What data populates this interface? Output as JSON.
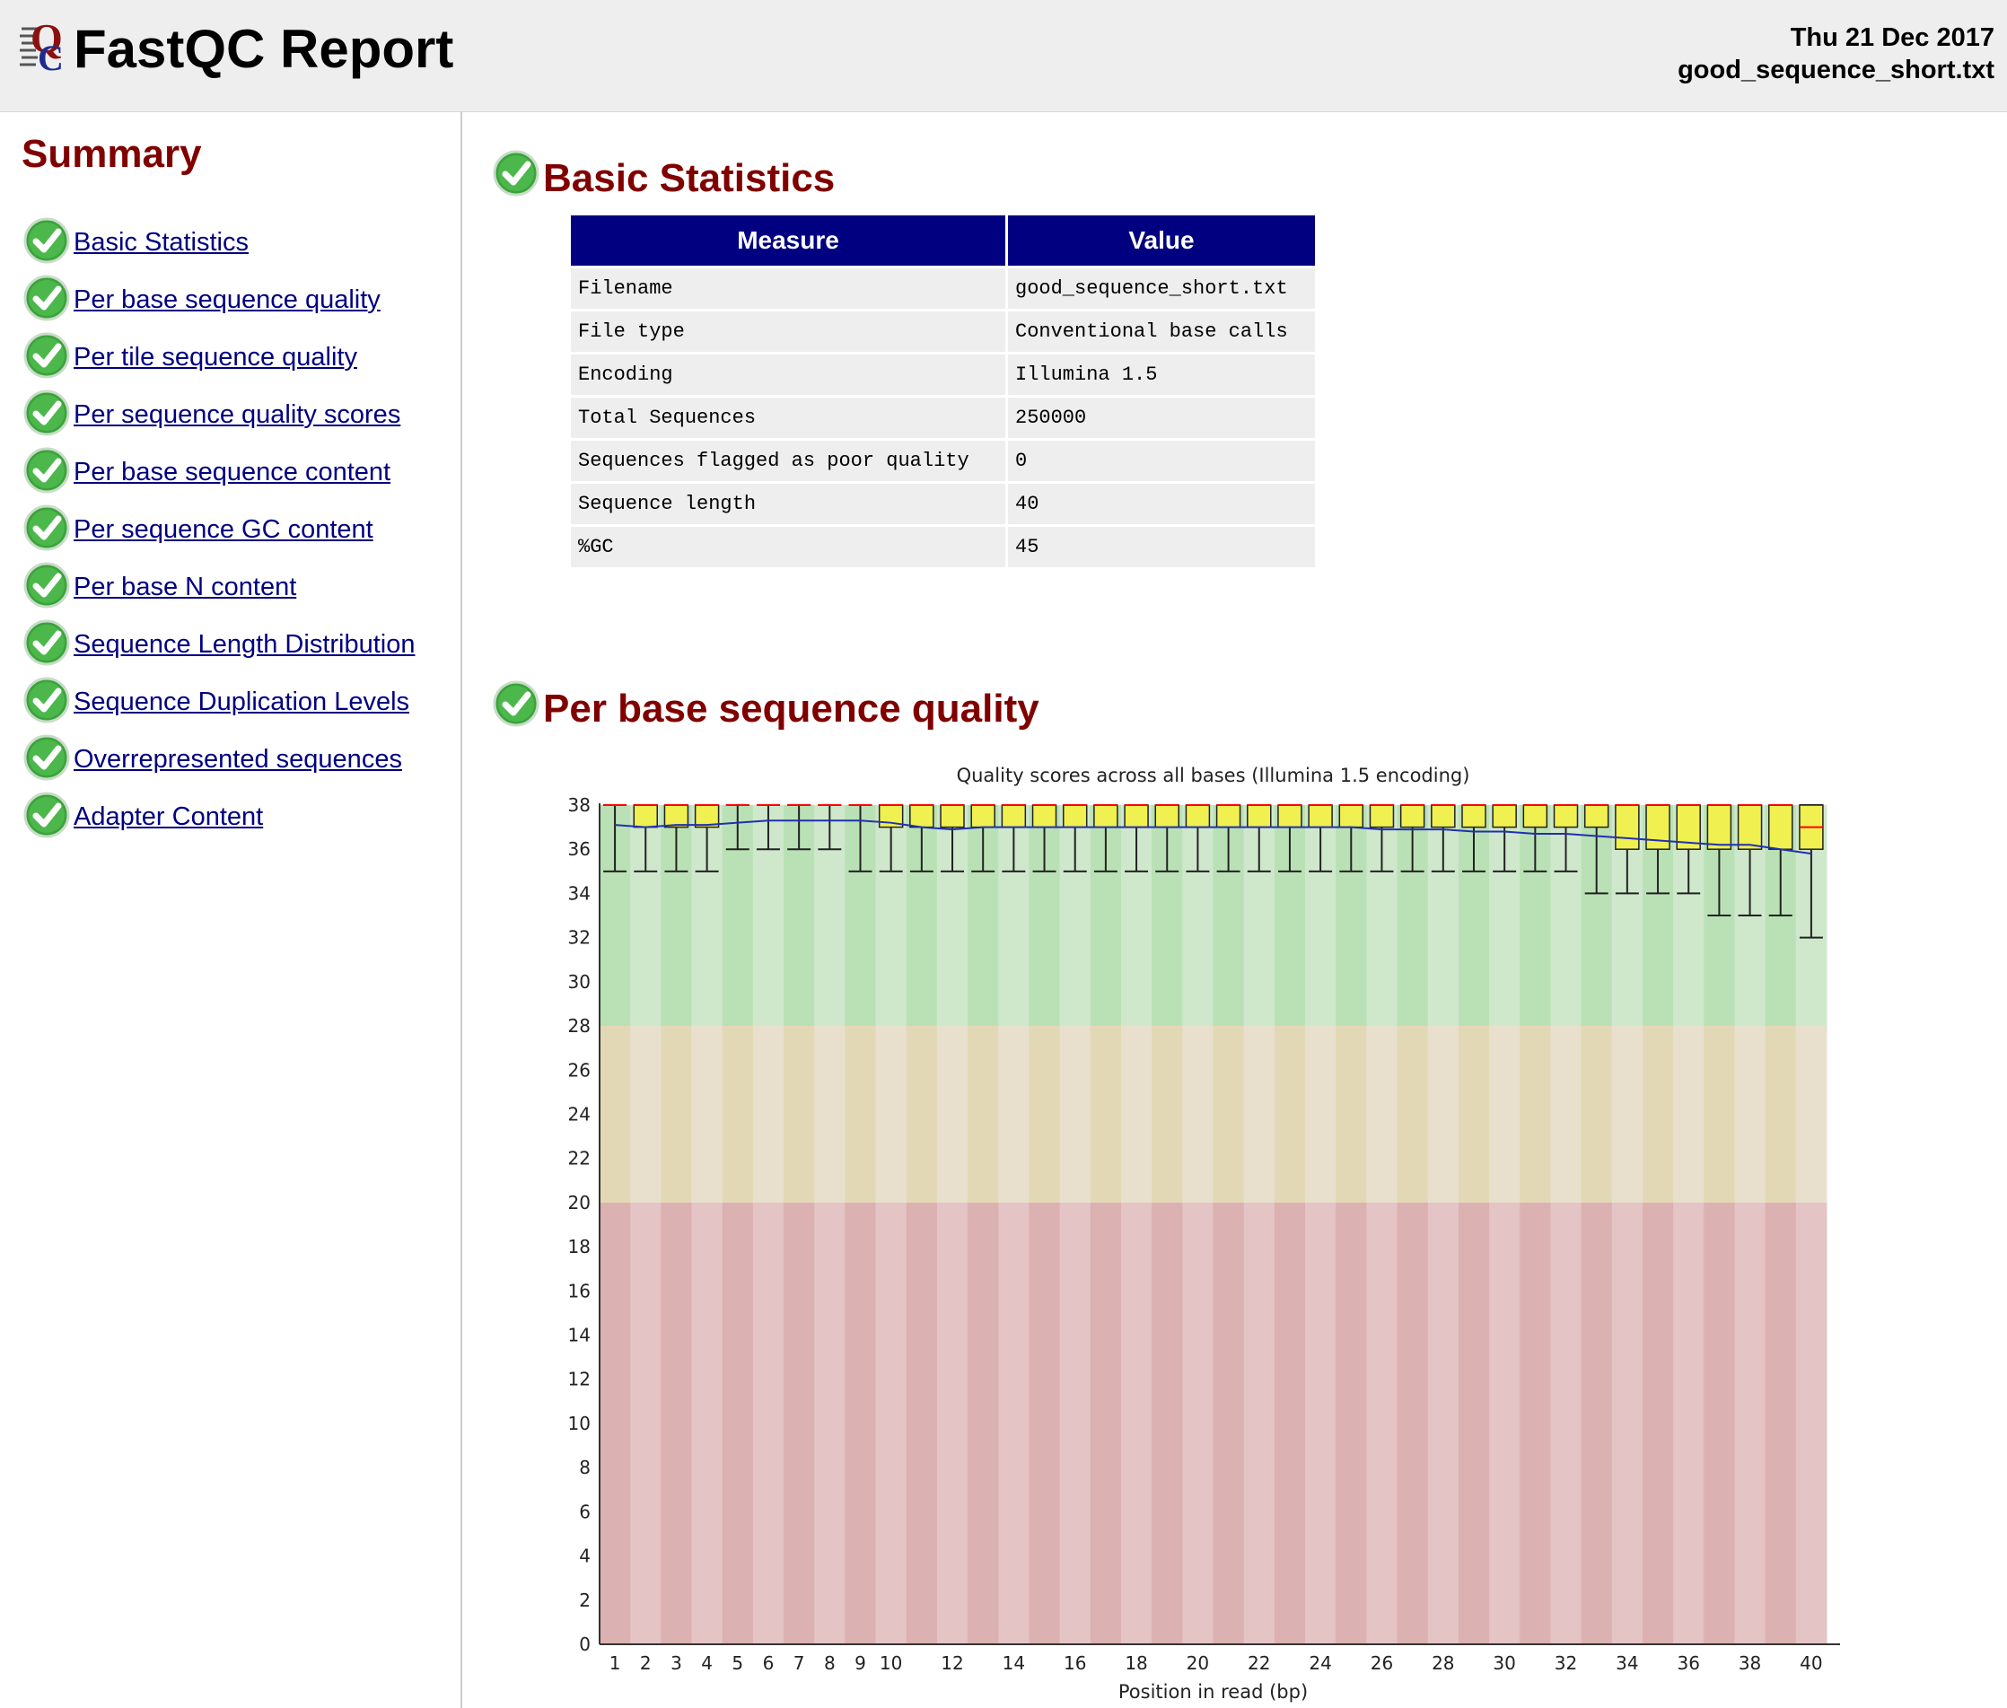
{
  "header": {
    "title": "FastQC Report",
    "date": "Thu 21 Dec 2017",
    "filename": "good_sequence_short.txt"
  },
  "sidebar": {
    "title": "Summary",
    "items": [
      {
        "label": "Basic Statistics",
        "status": "pass"
      },
      {
        "label": "Per base sequence quality",
        "status": "pass"
      },
      {
        "label": "Per tile sequence quality",
        "status": "pass"
      },
      {
        "label": "Per sequence quality scores",
        "status": "pass"
      },
      {
        "label": "Per base sequence content",
        "status": "pass"
      },
      {
        "label": "Per sequence GC content",
        "status": "pass"
      },
      {
        "label": "Per base N content",
        "status": "pass"
      },
      {
        "label": "Sequence Length Distribution",
        "status": "pass"
      },
      {
        "label": "Sequence Duplication Levels",
        "status": "pass"
      },
      {
        "label": "Overrepresented sequences",
        "status": "pass"
      },
      {
        "label": "Adapter Content",
        "status": "pass"
      }
    ]
  },
  "basic_stats": {
    "title": "Basic Statistics",
    "headers": [
      "Measure",
      "Value"
    ],
    "rows": [
      [
        "Filename",
        "good_sequence_short.txt"
      ],
      [
        "File type",
        "Conventional base calls"
      ],
      [
        "Encoding",
        "Illumina 1.5"
      ],
      [
        "Total Sequences",
        "250000"
      ],
      [
        "Sequences flagged as poor quality",
        "0"
      ],
      [
        "Sequence length",
        "40"
      ],
      [
        "%GC",
        "45"
      ]
    ]
  },
  "quality_section": {
    "title": "Per base sequence quality"
  },
  "colors": {
    "heading": "#800000",
    "link": "#000080",
    "table_header": "#000080",
    "good_zone": [
      "#b9e1b5",
      "#cfe8cc"
    ],
    "warn_zone": [
      "#e3d8b5",
      "#e8e0cc"
    ],
    "bad_zone": [
      "#dcb1b1",
      "#e4c4c4"
    ],
    "box": "#f0f050",
    "median": "#ff0000",
    "mean_line": "#2030b0"
  },
  "chart_data": {
    "type": "box",
    "title": "Quality scores across all bases (Illumina 1.5 encoding)",
    "xlabel": "Position in read (bp)",
    "ylabel": "",
    "ylim": [
      0,
      38
    ],
    "y_ticks": [
      0,
      2,
      4,
      6,
      8,
      10,
      12,
      14,
      16,
      18,
      20,
      22,
      24,
      26,
      28,
      30,
      32,
      34,
      36,
      38
    ],
    "x_ticks": [
      1,
      2,
      3,
      4,
      5,
      6,
      7,
      8,
      9,
      10,
      12,
      14,
      16,
      18,
      20,
      22,
      24,
      26,
      28,
      30,
      32,
      34,
      36,
      38,
      40
    ],
    "zones": [
      {
        "from": 28,
        "to": 38,
        "quality": "good"
      },
      {
        "from": 20,
        "to": 28,
        "quality": "warning"
      },
      {
        "from": 0,
        "to": 20,
        "quality": "poor"
      }
    ],
    "positions": [
      1,
      2,
      3,
      4,
      5,
      6,
      7,
      8,
      9,
      10,
      11,
      12,
      13,
      14,
      15,
      16,
      17,
      18,
      19,
      20,
      21,
      22,
      23,
      24,
      25,
      26,
      27,
      28,
      29,
      30,
      31,
      32,
      33,
      34,
      35,
      36,
      37,
      38,
      39,
      40
    ],
    "median": [
      38,
      38,
      38,
      38,
      38,
      38,
      38,
      38,
      38,
      38,
      38,
      38,
      38,
      38,
      38,
      38,
      38,
      38,
      38,
      38,
      38,
      38,
      38,
      38,
      38,
      38,
      38,
      38,
      38,
      38,
      38,
      38,
      38,
      38,
      38,
      38,
      38,
      38,
      38,
      37
    ],
    "q1": [
      38,
      37,
      37,
      37,
      38,
      38,
      38,
      38,
      38,
      37,
      37,
      37,
      37,
      37,
      37,
      37,
      37,
      37,
      37,
      37,
      37,
      37,
      37,
      37,
      37,
      37,
      37,
      37,
      37,
      37,
      37,
      37,
      37,
      36,
      36,
      36,
      36,
      36,
      36,
      36
    ],
    "q3": [
      38,
      38,
      38,
      38,
      38,
      38,
      38,
      38,
      38,
      38,
      38,
      38,
      38,
      38,
      38,
      38,
      38,
      38,
      38,
      38,
      38,
      38,
      38,
      38,
      38,
      38,
      38,
      38,
      38,
      38,
      38,
      38,
      38,
      38,
      38,
      38,
      38,
      38,
      38,
      38
    ],
    "whisker_low": [
      35,
      35,
      35,
      35,
      36,
      36,
      36,
      36,
      35,
      35,
      35,
      35,
      35,
      35,
      35,
      35,
      35,
      35,
      35,
      35,
      35,
      35,
      35,
      35,
      35,
      35,
      35,
      35,
      35,
      35,
      35,
      35,
      34,
      34,
      34,
      34,
      33,
      33,
      33,
      32
    ],
    "whisker_high": [
      38,
      38,
      38,
      38,
      38,
      38,
      38,
      38,
      38,
      38,
      38,
      38,
      38,
      38,
      38,
      38,
      38,
      38,
      38,
      38,
      38,
      38,
      38,
      38,
      38,
      38,
      38,
      38,
      38,
      38,
      38,
      38,
      38,
      38,
      38,
      38,
      38,
      38,
      38,
      38
    ],
    "mean": [
      37.1,
      37.0,
      37.1,
      37.1,
      37.2,
      37.3,
      37.3,
      37.3,
      37.3,
      37.2,
      37.0,
      36.9,
      37.0,
      37.0,
      37.0,
      37.0,
      37.0,
      37.0,
      37.0,
      37.0,
      37.0,
      37.0,
      37.0,
      37.0,
      37.0,
      36.9,
      36.9,
      36.9,
      36.8,
      36.8,
      36.7,
      36.7,
      36.6,
      36.5,
      36.4,
      36.3,
      36.2,
      36.2,
      36.0,
      35.8
    ]
  }
}
